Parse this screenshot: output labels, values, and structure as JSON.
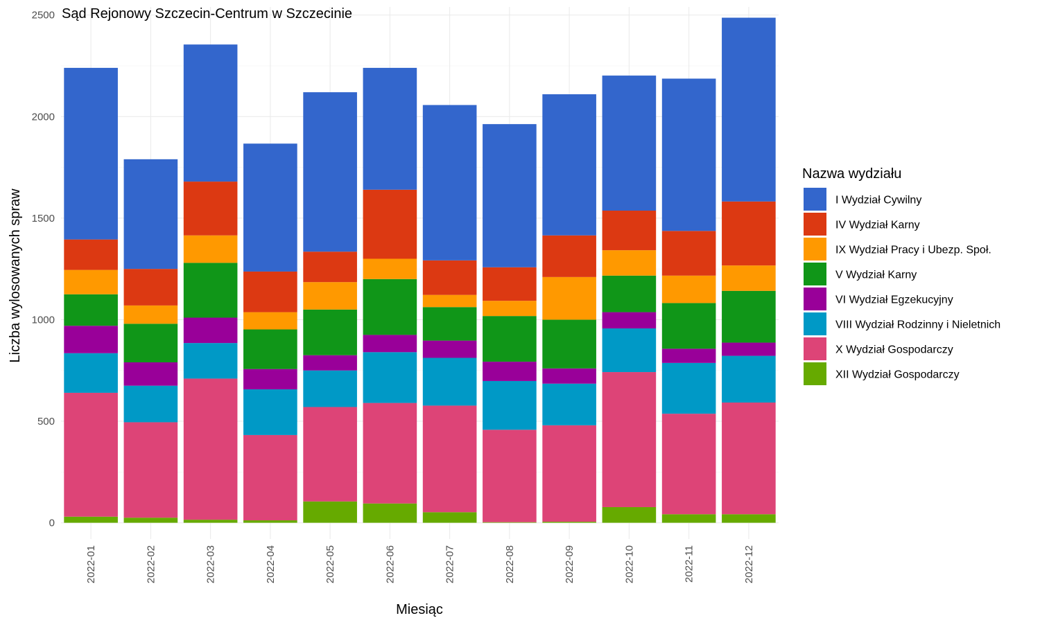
{
  "chart_data": {
    "type": "bar",
    "stacked": true,
    "title": "Sąd Rejonowy Szczecin-Centrum w Szczecinie",
    "xlabel": "Miesiąc",
    "ylabel": "Liczba wylosowanych spraw",
    "ylim": [
      -80,
      2540
    ],
    "yticks": [
      0,
      500,
      1000,
      1500,
      2000,
      2500
    ],
    "categories": [
      "2022-01",
      "2022-02",
      "2022-03",
      "2022-04",
      "2022-05",
      "2022-06",
      "2022-07",
      "2022-08",
      "2022-09",
      "2022-10",
      "2022-11",
      "2022-12"
    ],
    "legend": {
      "title": "Nazwa wydziału",
      "position": "right"
    },
    "series": [
      {
        "name": "I Wydział Cywilny",
        "color": "#3366cc",
        "values": [
          845,
          540,
          675,
          630,
          785,
          600,
          765,
          705,
          695,
          665,
          750,
          905
        ]
      },
      {
        "name": "IV Wydział Karny",
        "color": "#dc3912",
        "values": [
          150,
          180,
          265,
          200,
          150,
          340,
          170,
          165,
          205,
          195,
          220,
          315
        ]
      },
      {
        "name": "IX Wydział Pracy i Ubezp. Społ.",
        "color": "#ff9900",
        "values": [
          120,
          90,
          135,
          85,
          135,
          100,
          60,
          75,
          210,
          125,
          135,
          125
        ]
      },
      {
        "name": "V Wydział Karny",
        "color": "#109618",
        "values": [
          155,
          190,
          270,
          195,
          225,
          275,
          165,
          225,
          240,
          180,
          225,
          255
        ]
      },
      {
        "name": "VI Wydział Egzekucyjny",
        "color": "#990099",
        "values": [
          135,
          115,
          125,
          100,
          75,
          85,
          85,
          95,
          75,
          80,
          70,
          65
        ]
      },
      {
        "name": "VIII Wydział Rodzinny i Nieletnich",
        "color": "#0099c6",
        "values": [
          195,
          180,
          175,
          225,
          180,
          250,
          235,
          240,
          205,
          215,
          250,
          230
        ]
      },
      {
        "name": "X Wydział Gospodarczy",
        "color": "#dd4477",
        "values": [
          610,
          470,
          695,
          420,
          465,
          495,
          525,
          455,
          475,
          665,
          495,
          550
        ]
      },
      {
        "name": "XII Wydział Gospodarczy",
        "color": "#66aa00",
        "values": [
          30,
          25,
          15,
          12,
          105,
          95,
          52,
          3,
          5,
          77,
          42,
          42
        ]
      }
    ]
  }
}
